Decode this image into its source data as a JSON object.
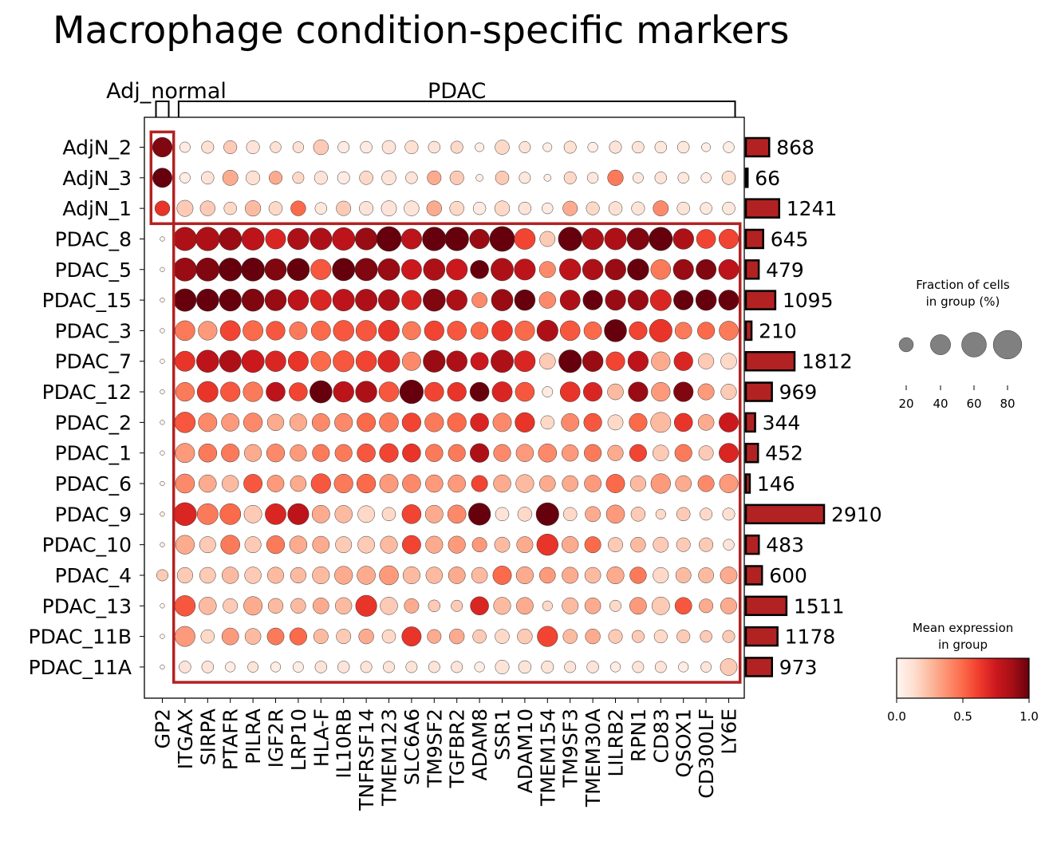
{
  "chart_data": {
    "type": "dotplot",
    "title": "Macrophage condition-specific markers",
    "group_brackets": [
      {
        "label": "Adj_normal",
        "genes": [
          "GP2"
        ]
      },
      {
        "label": "PDAC",
        "genes": [
          "ITGAX",
          "SIRPA",
          "PTAFR",
          "PILRA",
          "IGF2R",
          "LRP10",
          "HLA-F",
          "IL10RB",
          "TNFRSF14",
          "TMEM123",
          "SLC6A6",
          "TM9SF2",
          "TGFBR2",
          "ADAM8",
          "SSR1",
          "ADAM10",
          "TMEM154",
          "TM9SF3",
          "TMEM30A",
          "LILRB2",
          "RPN1",
          "CD83",
          "QSOX1",
          "CD300LF",
          "LY6E"
        ]
      }
    ],
    "genes": [
      "GP2",
      "ITGAX",
      "SIRPA",
      "PTAFR",
      "PILRA",
      "IGF2R",
      "LRP10",
      "HLA-F",
      "IL10RB",
      "TNFRSF14",
      "TMEM123",
      "SLC6A6",
      "TM9SF2",
      "TGFBR2",
      "ADAM8",
      "SSR1",
      "ADAM10",
      "TMEM154",
      "TM9SF3",
      "TMEM30A",
      "LILRB2",
      "RPN1",
      "CD83",
      "QSOX1",
      "CD300LF",
      "LY6E"
    ],
    "groups": [
      "AdjN_2",
      "AdjN_3",
      "AdjN_1",
      "PDAC_8",
      "PDAC_5",
      "PDAC_15",
      "PDAC_3",
      "PDAC_7",
      "PDAC_12",
      "PDAC_2",
      "PDAC_1",
      "PDAC_6",
      "PDAC_9",
      "PDAC_10",
      "PDAC_4",
      "PDAC_13",
      "PDAC_11B",
      "PDAC_11A"
    ],
    "cell_counts": [
      868,
      66,
      1241,
      645,
      479,
      1095,
      210,
      1812,
      969,
      344,
      452,
      146,
      2910,
      483,
      600,
      1511,
      1178,
      973
    ],
    "mean_expression": [
      [
        0.95,
        0.06,
        0.12,
        0.2,
        0.1,
        0.12,
        0.12,
        0.2,
        0.06,
        0.06,
        0.1,
        0.12,
        0.1,
        0.15,
        0.04,
        0.15,
        0.1,
        0.04,
        0.12,
        0.04,
        0.1,
        0.1,
        0.08,
        0.08,
        0.04,
        0.04
      ],
      [
        1.0,
        0.05,
        0.1,
        0.3,
        0.12,
        0.3,
        0.15,
        0.1,
        0.06,
        0.15,
        0.1,
        0.1,
        0.3,
        0.2,
        0.04,
        0.2,
        0.08,
        0.04,
        0.15,
        0.08,
        0.45,
        0.08,
        0.1,
        0.08,
        0.04,
        0.12
      ],
      [
        0.65,
        0.2,
        0.2,
        0.15,
        0.25,
        0.15,
        0.5,
        0.08,
        0.2,
        0.1,
        0.1,
        0.1,
        0.3,
        0.15,
        0.06,
        0.15,
        0.1,
        0.06,
        0.3,
        0.15,
        0.12,
        0.1,
        0.4,
        0.1,
        0.08,
        0.08
      ],
      [
        0.0,
        0.85,
        0.85,
        0.9,
        0.8,
        0.7,
        0.85,
        0.85,
        0.8,
        0.9,
        1.0,
        0.8,
        1.0,
        1.0,
        0.9,
        1.0,
        0.6,
        0.2,
        1.0,
        0.85,
        0.85,
        0.95,
        1.0,
        0.85,
        0.6,
        0.6
      ],
      [
        0.0,
        0.9,
        0.95,
        1.0,
        1.0,
        0.95,
        1.0,
        0.55,
        1.0,
        0.95,
        0.9,
        0.75,
        0.85,
        0.75,
        1.0,
        0.85,
        0.8,
        0.4,
        0.8,
        0.85,
        0.9,
        1.0,
        0.45,
        0.9,
        0.95,
        0.8
      ],
      [
        0.0,
        1.0,
        1.0,
        1.0,
        0.95,
        0.9,
        0.8,
        0.7,
        0.8,
        0.85,
        0.85,
        0.7,
        0.95,
        0.85,
        0.4,
        0.9,
        1.0,
        0.4,
        0.85,
        1.0,
        0.9,
        0.9,
        0.7,
        1.0,
        1.0,
        1.0
      ],
      [
        0.0,
        0.45,
        0.35,
        0.6,
        0.5,
        0.55,
        0.45,
        0.5,
        0.55,
        0.55,
        0.65,
        0.45,
        0.6,
        0.55,
        0.5,
        0.65,
        0.5,
        0.85,
        0.55,
        0.5,
        1.0,
        0.6,
        0.65,
        0.45,
        0.5,
        0.45
      ],
      [
        0.0,
        0.65,
        0.8,
        0.85,
        0.75,
        0.7,
        0.65,
        0.5,
        0.55,
        0.6,
        0.7,
        0.4,
        0.9,
        0.85,
        0.75,
        0.85,
        0.7,
        0.2,
        1.0,
        0.9,
        0.6,
        0.8,
        0.3,
        0.7,
        0.2,
        0.15
      ],
      [
        0.0,
        0.45,
        0.65,
        0.55,
        0.45,
        0.8,
        0.6,
        1.0,
        0.8,
        0.85,
        0.55,
        1.0,
        0.6,
        0.65,
        1.0,
        0.7,
        0.55,
        0.06,
        0.65,
        0.7,
        0.25,
        0.9,
        0.35,
        0.95,
        0.35,
        0.2
      ],
      [
        0.0,
        0.55,
        0.4,
        0.35,
        0.4,
        0.3,
        0.3,
        0.4,
        0.4,
        0.5,
        0.45,
        0.6,
        0.45,
        0.5,
        0.7,
        0.4,
        0.65,
        0.15,
        0.4,
        0.55,
        0.15,
        0.5,
        0.25,
        0.65,
        0.3,
        0.75
      ],
      [
        0.0,
        0.35,
        0.45,
        0.45,
        0.3,
        0.4,
        0.35,
        0.45,
        0.45,
        0.55,
        0.6,
        0.65,
        0.45,
        0.45,
        0.85,
        0.4,
        0.35,
        0.4,
        0.35,
        0.45,
        0.3,
        0.6,
        0.2,
        0.45,
        0.2,
        0.7
      ],
      [
        0.0,
        0.4,
        0.3,
        0.25,
        0.55,
        0.35,
        0.3,
        0.55,
        0.45,
        0.5,
        0.35,
        0.4,
        0.35,
        0.35,
        0.6,
        0.3,
        0.25,
        0.3,
        0.3,
        0.35,
        0.5,
        0.25,
        0.35,
        0.3,
        0.4,
        0.35
      ],
      [
        0.05,
        0.7,
        0.45,
        0.5,
        0.2,
        0.7,
        0.8,
        0.3,
        0.25,
        0.15,
        0.15,
        0.6,
        0.3,
        0.4,
        1.0,
        0.1,
        0.15,
        1.0,
        0.15,
        0.3,
        0.35,
        0.2,
        0.15,
        0.2,
        0.15,
        0.12
      ],
      [
        0.05,
        0.3,
        0.2,
        0.45,
        0.2,
        0.45,
        0.3,
        0.3,
        0.2,
        0.2,
        0.25,
        0.6,
        0.3,
        0.35,
        0.35,
        0.25,
        0.3,
        0.65,
        0.3,
        0.5,
        0.2,
        0.25,
        0.2,
        0.2,
        0.2,
        0.1
      ],
      [
        0.2,
        0.2,
        0.2,
        0.25,
        0.2,
        0.25,
        0.25,
        0.25,
        0.3,
        0.3,
        0.35,
        0.25,
        0.25,
        0.3,
        0.25,
        0.5,
        0.3,
        0.35,
        0.3,
        0.25,
        0.3,
        0.45,
        0.15,
        0.25,
        0.25,
        0.3
      ],
      [
        0.0,
        0.55,
        0.25,
        0.2,
        0.3,
        0.25,
        0.25,
        0.3,
        0.25,
        0.65,
        0.2,
        0.3,
        0.2,
        0.2,
        0.7,
        0.25,
        0.3,
        0.15,
        0.25,
        0.3,
        0.15,
        0.35,
        0.2,
        0.55,
        0.3,
        0.3
      ],
      [
        0.0,
        0.35,
        0.15,
        0.35,
        0.25,
        0.45,
        0.5,
        0.25,
        0.2,
        0.3,
        0.15,
        0.65,
        0.3,
        0.3,
        0.2,
        0.15,
        0.2,
        0.6,
        0.25,
        0.3,
        0.2,
        0.2,
        0.15,
        0.2,
        0.2,
        0.2
      ],
      [
        0.0,
        0.1,
        0.1,
        0.05,
        0.1,
        0.05,
        0.05,
        0.1,
        0.1,
        0.1,
        0.1,
        0.1,
        0.1,
        0.1,
        0.05,
        0.1,
        0.1,
        0.1,
        0.1,
        0.1,
        0.05,
        0.1,
        0.1,
        0.05,
        0.1,
        0.2
      ]
    ],
    "fraction_pct": [
      [
        38,
        11,
        15,
        17,
        17,
        12,
        12,
        22,
        13,
        14,
        18,
        17,
        14,
        15,
        8,
        20,
        13,
        8,
        15,
        10,
        15,
        14,
        14,
        14,
        8,
        12
      ],
      [
        37,
        11,
        16,
        23,
        19,
        17,
        13,
        17,
        15,
        18,
        20,
        14,
        19,
        19,
        5,
        18,
        13,
        5,
        15,
        12,
        24,
        11,
        14,
        12,
        10,
        18
      ],
      [
        22,
        26,
        22,
        16,
        24,
        18,
        22,
        14,
        21,
        19,
        23,
        22,
        22,
        20,
        16,
        22,
        16,
        12,
        21,
        17,
        18,
        17,
        23,
        16,
        14,
        16
      ],
      [
        2,
        54,
        55,
        50,
        50,
        40,
        45,
        47,
        51,
        48,
        60,
        41,
        55,
        55,
        38,
        61,
        43,
        23,
        55,
        46,
        47,
        48,
        54,
        42,
        36,
        38
      ],
      [
        2,
        53,
        53,
        52,
        53,
        46,
        49,
        41,
        50,
        50,
        47,
        40,
        46,
        44,
        33,
        50,
        44,
        26,
        45,
        42,
        43,
        45,
        39,
        41,
        40,
        40
      ],
      [
        2,
        50,
        49,
        48,
        49,
        45,
        42,
        43,
        47,
        47,
        44,
        38,
        49,
        42,
        23,
        46,
        42,
        27,
        40,
        38,
        41,
        41,
        44,
        38,
        42,
        40
      ],
      [
        2,
        39,
        35,
        40,
        40,
        35,
        31,
        37,
        42,
        42,
        43,
        33,
        38,
        36,
        29,
        42,
        38,
        44,
        39,
        31,
        49,
        32,
        51,
        28,
        29,
        36
      ],
      [
        2,
        40,
        49,
        47,
        50,
        42,
        40,
        39,
        44,
        42,
        47,
        34,
        48,
        42,
        31,
        50,
        43,
        25,
        51,
        42,
        35,
        41,
        35,
        35,
        24,
        25
      ],
      [
        2,
        35,
        43,
        38,
        38,
        36,
        33,
        49,
        42,
        45,
        39,
        55,
        36,
        35,
        36,
        40,
        36,
        11,
        39,
        35,
        25,
        38,
        35,
        38,
        26,
        24
      ],
      [
        2,
        42,
        34,
        31,
        35,
        27,
        29,
        31,
        32,
        34,
        36,
        35,
        35,
        35,
        33,
        34,
        38,
        18,
        31,
        32,
        23,
        32,
        40,
        33,
        25,
        37
      ],
      [
        2,
        37,
        33,
        32,
        29,
        32,
        27,
        29,
        29,
        33,
        35,
        33,
        30,
        29,
        35,
        29,
        30,
        33,
        27,
        29,
        24,
        29,
        25,
        29,
        21,
        37
      ],
      [
        2,
        36,
        30,
        27,
        34,
        28,
        25,
        38,
        35,
        35,
        34,
        33,
        30,
        30,
        26,
        30,
        32,
        25,
        25,
        28,
        34,
        24,
        38,
        25,
        26,
        34
      ],
      [
        2,
        52,
        43,
        43,
        31,
        43,
        44,
        31,
        30,
        28,
        18,
        36,
        31,
        33,
        48,
        18,
        20,
        51,
        18,
        23,
        33,
        20,
        10,
        18,
        15,
        15
      ],
      [
        2,
        35,
        26,
        36,
        26,
        32,
        30,
        28,
        26,
        28,
        29,
        34,
        29,
        29,
        21,
        23,
        26,
        45,
        27,
        26,
        21,
        22,
        23,
        19,
        19,
        12
      ],
      [
        13,
        24,
        25,
        27,
        27,
        26,
        24,
        29,
        32,
        33,
        36,
        29,
        27,
        28,
        25,
        34,
        29,
        25,
        26,
        25,
        29,
        27,
        24,
        23,
        23,
        28
      ],
      [
        2,
        42,
        30,
        21,
        34,
        22,
        22,
        25,
        27,
        44,
        30,
        21,
        14,
        13,
        33,
        29,
        28,
        10,
        26,
        25,
        13,
        28,
        31,
        28,
        19,
        26
      ],
      [
        2,
        40,
        18,
        28,
        25,
        28,
        29,
        21,
        21,
        22,
        18,
        37,
        19,
        22,
        18,
        20,
        22,
        41,
        20,
        22,
        19,
        15,
        17,
        17,
        14,
        15
      ],
      [
        2,
        14,
        14,
        10,
        11,
        10,
        11,
        14,
        14,
        13,
        13,
        13,
        13,
        13,
        10,
        19,
        16,
        15,
        13,
        14,
        10,
        13,
        13,
        10,
        11,
        28
      ]
    ],
    "highlight_boxes": [
      {
        "rows": [
          "AdjN_2",
          "AdjN_1"
        ],
        "cols": [
          "GP2",
          "GP2"
        ]
      },
      {
        "rows": [
          "PDAC_8",
          "PDAC_11A"
        ],
        "cols": [
          "ITGAX",
          "LY6E"
        ]
      }
    ],
    "size_legend": {
      "title_line1": "Fraction of cells",
      "title_line2": "in group (%)",
      "values": [
        20,
        40,
        60,
        80
      ]
    },
    "color_legend": {
      "title_line1": "Mean expression",
      "title_line2": "in group",
      "ticks": [
        "0.0",
        "0.5",
        "1.0"
      ],
      "range": [
        0,
        1
      ],
      "colormap": [
        "#fff5f0",
        "#fee0d2",
        "#fcbba1",
        "#fc9272",
        "#fb6a4a",
        "#ef3b2c",
        "#cb181d",
        "#a50f15",
        "#67000d"
      ]
    },
    "bar_color": "#b22222",
    "box_color": "#b22222"
  }
}
